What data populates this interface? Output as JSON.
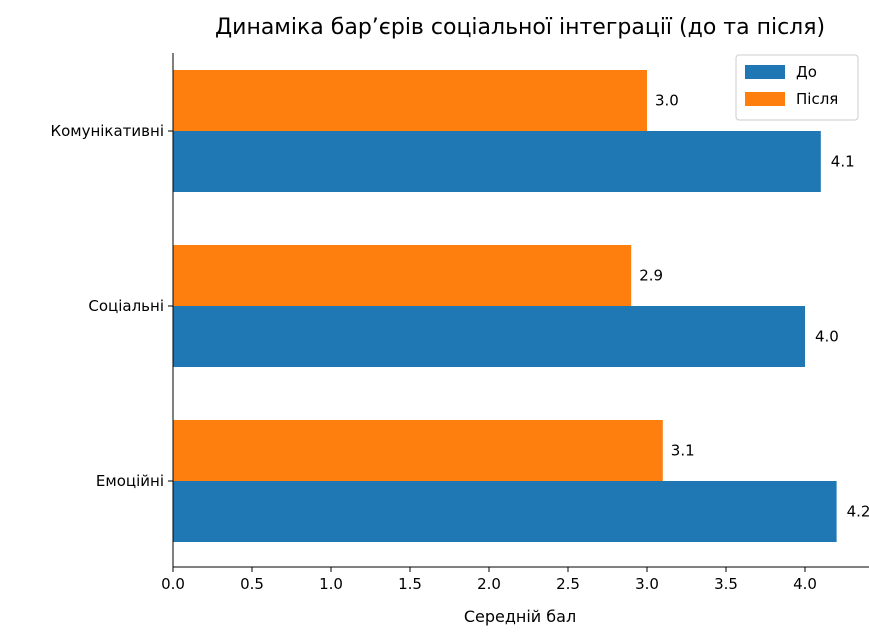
{
  "chart_data": {
    "type": "bar",
    "orientation": "horizontal",
    "title": "Динаміка бар’єрів соціальної інтеграції (до та після)",
    "xlabel": "Середній бал",
    "ylabel": "",
    "xlim": [
      0,
      4.4
    ],
    "x_ticks": [
      "0.0",
      "0.5",
      "1.0",
      "1.5",
      "2.0",
      "2.5",
      "3.0",
      "3.5",
      "4.0"
    ],
    "categories": [
      "Комунікативні",
      "Соціальні",
      "Емоційні"
    ],
    "series": [
      {
        "name": "До",
        "color": "#1f77b4",
        "values": [
          4.1,
          4.0,
          4.2
        ],
        "labels": [
          "4.1",
          "4.0",
          "4.2"
        ]
      },
      {
        "name": "Після",
        "color": "#ff7f0e",
        "values": [
          3.0,
          2.9,
          3.1
        ],
        "labels": [
          "3.0",
          "2.9",
          "3.1"
        ]
      }
    ],
    "legend_position": "top-right",
    "grid": false
  }
}
